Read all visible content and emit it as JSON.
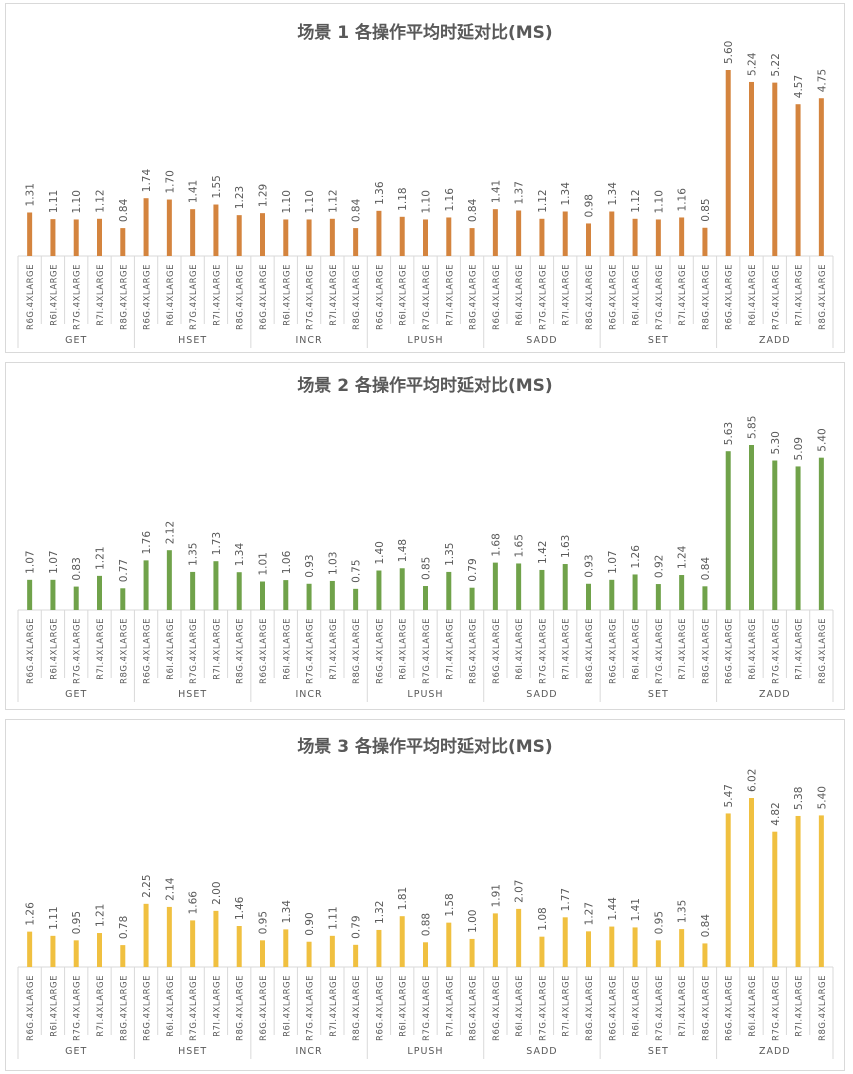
{
  "categories": [
    "R6G.4XLARGE",
    "R6I.4XLARGE",
    "R7G.4XLARGE",
    "R7I.4XLARGE",
    "R8G.4XLARGE"
  ],
  "operations": [
    "GET",
    "HSET",
    "INCR",
    "LPUSH",
    "SADD",
    "SET",
    "ZADD"
  ],
  "chart_data": [
    {
      "type": "bar",
      "title": "场景 1 各操作平均时延对比(MS)",
      "color": "#d4843e",
      "groups": [
        "GET",
        "HSET",
        "INCR",
        "LPUSH",
        "SADD",
        "SET",
        "ZADD"
      ],
      "categories": [
        "R6G.4XLARGE",
        "R6I.4XLARGE",
        "R7G.4XLARGE",
        "R7I.4XLARGE",
        "R8G.4XLARGE"
      ],
      "values": [
        [
          1.31,
          1.11,
          1.1,
          1.12,
          0.84
        ],
        [
          1.74,
          1.7,
          1.41,
          1.55,
          1.23
        ],
        [
          1.29,
          1.1,
          1.1,
          1.12,
          0.84
        ],
        [
          1.36,
          1.18,
          1.1,
          1.16,
          0.84
        ],
        [
          1.41,
          1.37,
          1.12,
          1.34,
          0.98
        ],
        [
          1.34,
          1.12,
          1.1,
          1.16,
          0.85
        ],
        [
          5.6,
          5.24,
          5.22,
          4.57,
          4.75
        ]
      ],
      "labels": [
        [
          "1.31",
          "1.11",
          "1.10",
          "1.12",
          "0.84"
        ],
        [
          "1.74",
          "1.70",
          "1.41",
          "1.55",
          "1.23"
        ],
        [
          "1.29",
          "1.10",
          "1.10",
          "1.12",
          "0.84"
        ],
        [
          "1.36",
          "1.18",
          "1.10",
          "1.16",
          "0.84"
        ],
        [
          "1.41",
          "1.37",
          "1.12",
          "1.34",
          "0.98"
        ],
        [
          "1.34",
          "1.12",
          "1.10",
          "1.16",
          "0.85"
        ],
        [
          "5.60",
          "5.24",
          "5.22",
          "4.57",
          "4.75"
        ]
      ],
      "ymax": 5.6
    },
    {
      "type": "bar",
      "title": "场景 2 各操作平均时延对比(MS)",
      "color": "#70a24a",
      "groups": [
        "GET",
        "HSET",
        "INCR",
        "LPUSH",
        "SADD",
        "SET",
        "ZADD"
      ],
      "categories": [
        "R6G.4XLARGE",
        "R6I.4XLARGE",
        "R7G.4XLARGE",
        "R7I.4XLARGE",
        "R8G.4XLARGE"
      ],
      "values": [
        [
          1.07,
          1.07,
          0.83,
          1.21,
          0.77
        ],
        [
          1.76,
          2.12,
          1.35,
          1.73,
          1.34
        ],
        [
          1.01,
          1.06,
          0.93,
          1.03,
          0.75
        ],
        [
          1.4,
          1.48,
          0.85,
          1.35,
          0.79
        ],
        [
          1.68,
          1.65,
          1.42,
          1.63,
          0.93
        ],
        [
          1.07,
          1.26,
          0.92,
          1.24,
          0.84
        ],
        [
          5.63,
          5.85,
          5.3,
          5.09,
          5.4
        ]
      ],
      "labels": [
        [
          "1.07",
          "1.07",
          "0.83",
          "1.21",
          "0.77"
        ],
        [
          "1.76",
          "2.12",
          "1.35",
          "1.73",
          "1.34"
        ],
        [
          "1.01",
          "1.06",
          "0.93",
          "1.03",
          "0.75"
        ],
        [
          "1.40",
          "1.48",
          "0.85",
          "1.35",
          "0.79"
        ],
        [
          "1.68",
          "1.65",
          "1.42",
          "1.63",
          "0.93"
        ],
        [
          "1.07",
          "1.26",
          "0.92",
          "1.24",
          "0.84"
        ],
        [
          "5.63",
          "5.85",
          "5.30",
          "5.09",
          "5.40"
        ]
      ],
      "ymax": 5.85
    },
    {
      "type": "bar",
      "title": "场景 3 各操作平均时延对比(MS)",
      "color": "#f0c040",
      "groups": [
        "GET",
        "HSET",
        "INCR",
        "LPUSH",
        "SADD",
        "SET",
        "ZADD"
      ],
      "categories": [
        "R6G.4XLARGE",
        "R6I.4XLARGE",
        "R7G.4XLARGE",
        "R7I.4XLARGE",
        "R8G.4XLARGE"
      ],
      "values": [
        [
          1.26,
          1.11,
          0.95,
          1.21,
          0.78
        ],
        [
          2.25,
          2.14,
          1.66,
          2.0,
          1.46
        ],
        [
          0.95,
          1.34,
          0.9,
          1.11,
          0.79
        ],
        [
          1.32,
          1.81,
          0.88,
          1.58,
          1.0
        ],
        [
          1.91,
          2.07,
          1.08,
          1.77,
          1.27
        ],
        [
          1.44,
          1.41,
          0.95,
          1.35,
          0.84
        ],
        [
          5.47,
          6.02,
          4.82,
          5.38,
          5.4
        ]
      ],
      "labels": [
        [
          "1.26",
          "1.11",
          "0.95",
          "1.21",
          "0.78"
        ],
        [
          "2.25",
          "2.14",
          "1.66",
          "2.00",
          "1.46"
        ],
        [
          "0.95",
          "1.34",
          "0.90",
          "1.11",
          "0.79"
        ],
        [
          "1.32",
          "1.81",
          "0.88",
          "1.58",
          "1.00"
        ],
        [
          "1.91",
          "2.07",
          "1.08",
          "1.77",
          "1.27"
        ],
        [
          "1.44",
          "1.41",
          "0.95",
          "1.35",
          "0.84"
        ],
        [
          "5.47",
          "6.02",
          "4.82",
          "5.38",
          "5.40"
        ]
      ],
      "ymax": 6.02
    }
  ]
}
